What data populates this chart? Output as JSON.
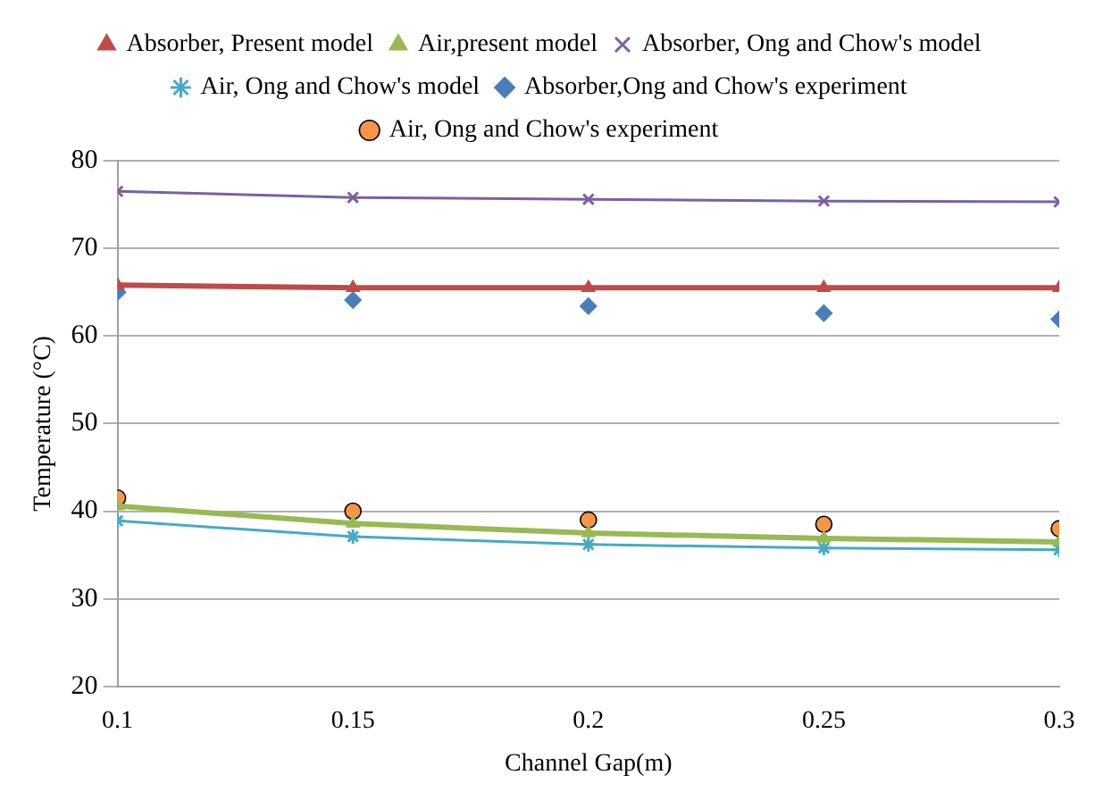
{
  "chart_data": {
    "type": "line",
    "xlabel": "Channel Gap(m)",
    "ylabel": "Temperature (°C)",
    "x": [
      0.1,
      0.15,
      0.2,
      0.25,
      0.3
    ],
    "xlim": [
      0.1,
      0.3
    ],
    "xticks": [
      0.1,
      0.15,
      0.2,
      0.25,
      0.3
    ],
    "ylim": [
      20,
      80
    ],
    "yticks": [
      20,
      30,
      40,
      50,
      60,
      70,
      80
    ],
    "grid": "y",
    "legend": "top",
    "line_style": "solid",
    "series": [
      {
        "name": "Absorber, Present model",
        "color": "#be4b48",
        "marker": "triangle",
        "values": [
          65.8,
          65.5,
          65.5,
          65.5,
          65.5
        ]
      },
      {
        "name": "Air,present model",
        "color": "#98b954",
        "marker": "triangle",
        "values": [
          40.6,
          38.6,
          37.5,
          36.9,
          36.5
        ]
      },
      {
        "name": "Absorber, Ong and Chow's model",
        "color": "#7d60a0",
        "marker": "cross",
        "values": [
          76.5,
          75.8,
          75.6,
          75.4,
          75.3
        ]
      },
      {
        "name": "Air, Ong and Chow's model",
        "color": "#46aac5",
        "marker": "cross",
        "values": [
          38.9,
          37.1,
          36.2,
          35.8,
          35.6
        ]
      },
      {
        "name": "Absorber,Ong and Chow's experiment",
        "type": "scatter",
        "color": "#4a7ebb",
        "marker": "diamond",
        "values": [
          65.0,
          64.1,
          63.4,
          62.6,
          61.9
        ]
      },
      {
        "name": "Air, Ong and Chow's experiment",
        "type": "scatter",
        "color": "#f79646",
        "marker": "circle",
        "values": [
          41.5,
          40.0,
          39.0,
          38.5,
          38.0
        ]
      }
    ]
  }
}
